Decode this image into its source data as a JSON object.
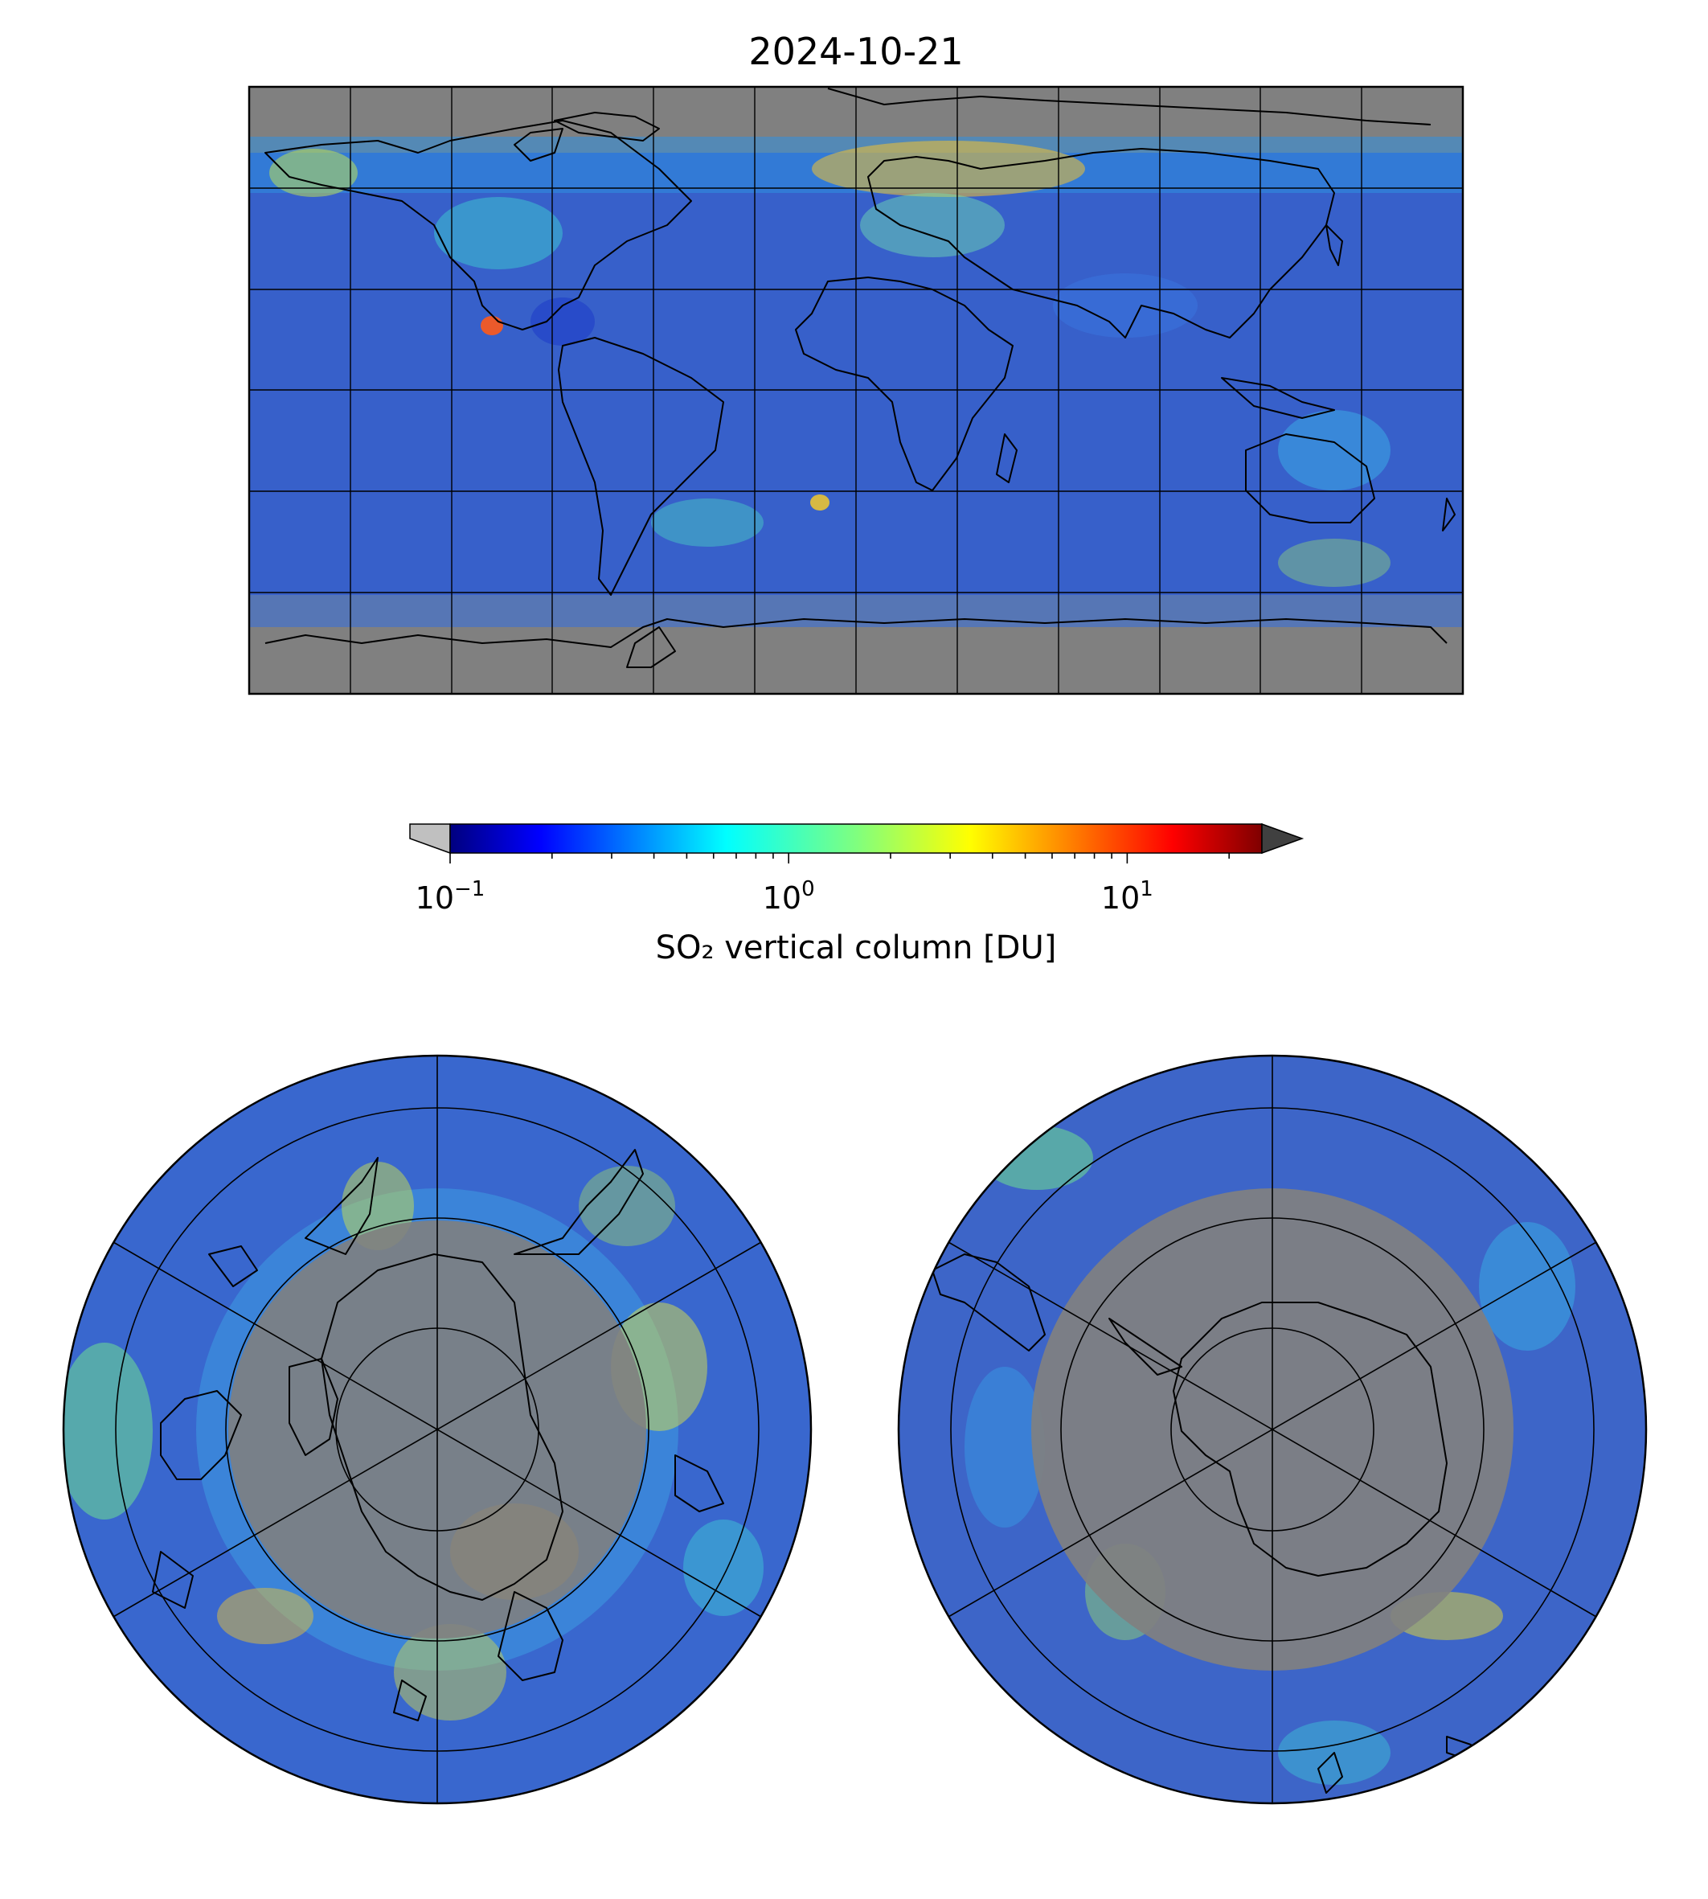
{
  "figure": {
    "title": "2024-10-21",
    "colorbar": {
      "label": "SO₂ vertical column [DU]",
      "ticks": [
        {
          "base": "10",
          "exp": "−1",
          "value": 0.1
        },
        {
          "base": "10",
          "exp": "0",
          "value": 1
        },
        {
          "base": "10",
          "exp": "1",
          "value": 10
        }
      ],
      "range": [
        0.1,
        25
      ],
      "scale": "log",
      "colormap": "jet",
      "extend_low_color": "#c0c0c0",
      "extend_high_color": "#404040"
    },
    "panels": [
      {
        "name": "global",
        "projection": "equirectangular",
        "graticule_deg": 30
      },
      {
        "name": "north-pole",
        "projection": "north-polar-stereographic"
      },
      {
        "name": "south-pole",
        "projection": "south-polar-stereographic"
      }
    ],
    "colors": {
      "background_no_data": "#808080",
      "low_values_gray": "#c0c0c0",
      "coastline": "#000000",
      "gridline": "#000000"
    }
  }
}
